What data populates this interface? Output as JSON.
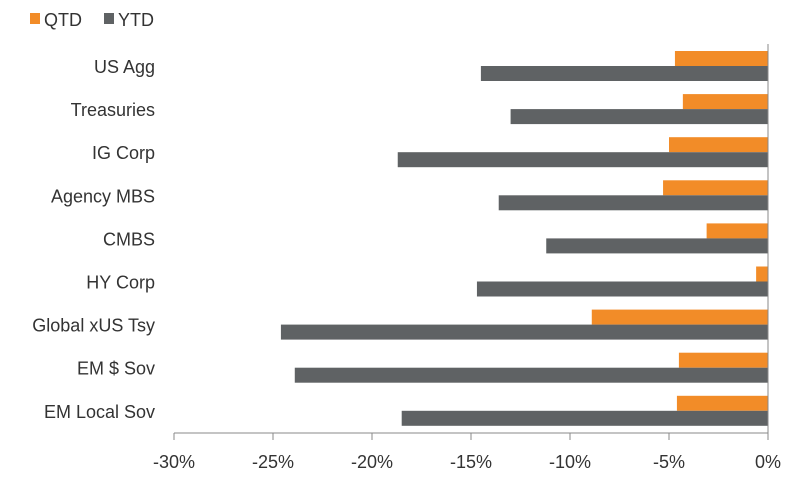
{
  "chart_data": {
    "type": "bar",
    "orientation": "horizontal",
    "categories": [
      "US Agg",
      "Treasuries",
      "IG Corp",
      "Agency MBS",
      "CMBS",
      "HY Corp",
      "Global xUS Tsy",
      "EM $ Sov",
      "EM Local Sov"
    ],
    "series": [
      {
        "name": "QTD",
        "color": "#F28C28",
        "values": [
          -4.7,
          -4.3,
          -5.0,
          -5.3,
          -3.1,
          -0.6,
          -8.9,
          -4.5,
          -4.6
        ]
      },
      {
        "name": "YTD",
        "color": "#5F6264",
        "values": [
          -14.5,
          -13.0,
          -18.7,
          -13.6,
          -11.2,
          -14.7,
          -24.6,
          -23.9,
          -18.5
        ]
      }
    ],
    "xlim": [
      -30,
      0
    ],
    "x_ticks": [
      -30,
      -25,
      -20,
      -15,
      -10,
      -5,
      0
    ],
    "x_tick_labels": [
      "-30%",
      "-25%",
      "-20%",
      "-15%",
      "-10%",
      "-5%",
      "0%"
    ],
    "legend_position": "top-left",
    "grid": false
  }
}
